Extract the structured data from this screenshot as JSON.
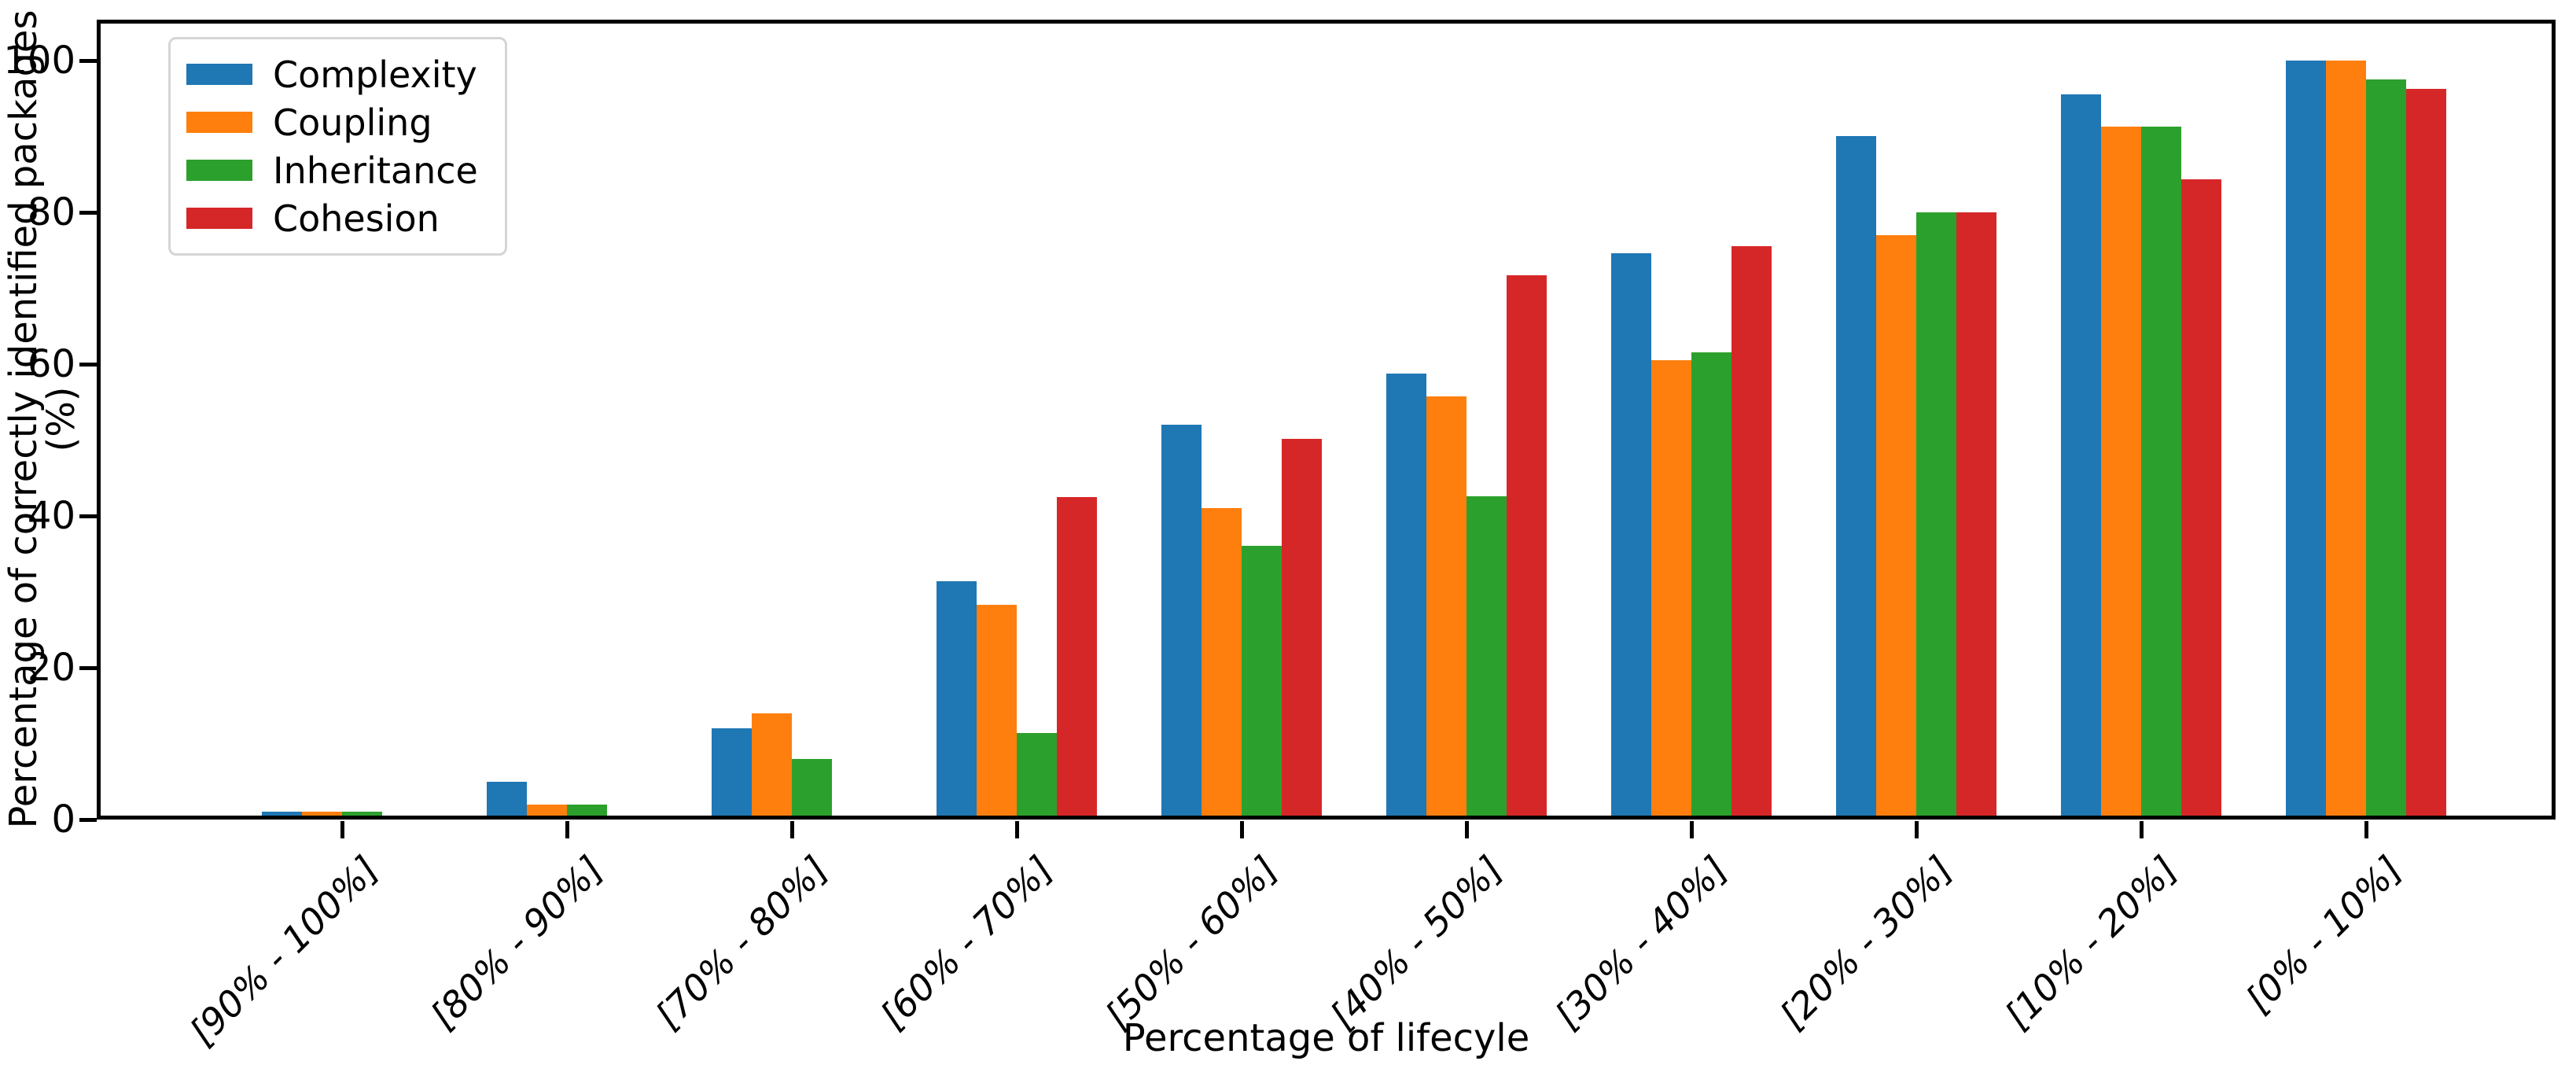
{
  "figure": {
    "background": "#ffffff",
    "xlabel": "Percentage of lifecyle",
    "ylabel": "Percentage of correctly identified packages (%)"
  },
  "chart_data": {
    "type": "bar",
    "title": "",
    "xlabel": "Percentage of lifecyle",
    "ylabel": "Percentage of correctly identified packages (%)",
    "grid": false,
    "legend_position": "upper left",
    "ylim": [
      0,
      105
    ],
    "yticks": [
      0,
      20,
      40,
      60,
      80,
      100
    ],
    "categories": [
      "[90% - 100%]",
      "[80% - 90%]",
      "[70% - 80%]",
      "[60% - 70%]",
      "[50% - 60%]",
      "[40% - 50%]",
      "[30% - 40%]",
      "[20% - 30%]",
      "[10% - 20%]",
      "[0% - 10%]"
    ],
    "series": [
      {
        "name": "Complexity",
        "color": "#1f77b4",
        "values": [
          1,
          5,
          12,
          31.4,
          52,
          58.7,
          74.6,
          90,
          95.5,
          100
        ]
      },
      {
        "name": "Coupling",
        "color": "#ff7f0e",
        "values": [
          1,
          2,
          14,
          28.3,
          41,
          55.7,
          60.5,
          77,
          91.3,
          100
        ]
      },
      {
        "name": "Inheritance",
        "color": "#2ca02c",
        "values": [
          1,
          2,
          8,
          11.4,
          36,
          42.6,
          61.5,
          80,
          91.3,
          97.5
        ]
      },
      {
        "name": "Cohesion",
        "color": "#d62728",
        "values": [
          0,
          0,
          0,
          42.5,
          50.1,
          71.7,
          75.5,
          80,
          84.3,
          96.2
        ]
      }
    ]
  }
}
